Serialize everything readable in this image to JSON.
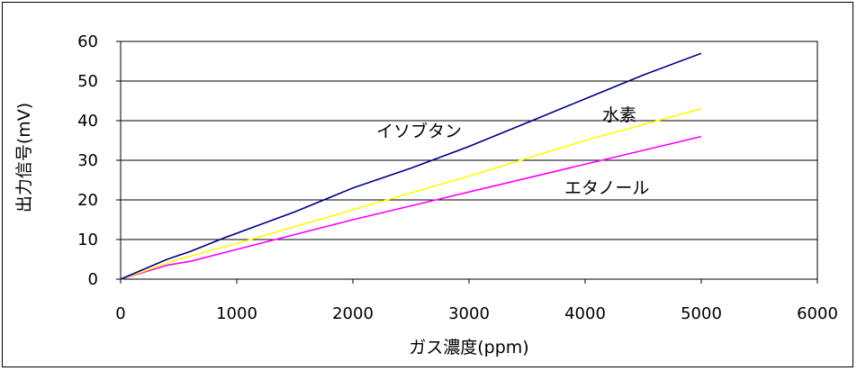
{
  "chart_data": {
    "type": "line",
    "xlabel": "ガス濃度(ppm)",
    "ylabel": "出力信号(mV)",
    "xlim": [
      0,
      6000
    ],
    "ylim": [
      0,
      60
    ],
    "x_ticks": [
      "0",
      "1000",
      "2000",
      "3000",
      "4000",
      "5000",
      "6000"
    ],
    "y_ticks": [
      "0",
      "10",
      "20",
      "30",
      "40",
      "50",
      "60"
    ],
    "grid": "horizontal",
    "legend": "none",
    "series": [
      {
        "name": "イソブタン",
        "color": "#000080",
        "x": [
          0,
          400,
          600,
          900,
          1500,
          2000,
          2500,
          3000,
          3500,
          4000,
          4500,
          5000
        ],
        "y": [
          0,
          5,
          7,
          10.5,
          17,
          23,
          28,
          33.5,
          39.5,
          45.5,
          51.5,
          57
        ]
      },
      {
        "name": "水素",
        "color": "#ffff00",
        "x": [
          0,
          500,
          1000,
          2000,
          3000,
          4000,
          5000
        ],
        "y": [
          0,
          5,
          9,
          17.5,
          26,
          35,
          43
        ]
      },
      {
        "name": "エタノール",
        "color": "#ff00ff",
        "x": [
          0,
          400,
          600,
          1000,
          1200,
          2000,
          3000,
          4000,
          5000
        ],
        "y": [
          0,
          3.5,
          4.5,
          7.5,
          9,
          15,
          22,
          29,
          36
        ]
      }
    ],
    "annotations": [
      "イソブタン",
      "水素",
      "エタノール"
    ]
  }
}
